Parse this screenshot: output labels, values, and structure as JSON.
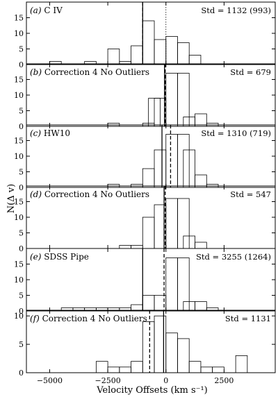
{
  "chart_data": {
    "type": "histogram",
    "xlabel": "Velocity Offsets (km s⁻¹)",
    "ylabel": "N(Δ v)",
    "xlim": [
      -6000,
      4700
    ],
    "bin_width": 500,
    "x_ticks": [
      -5000,
      -2500,
      0,
      2500
    ],
    "x_tick_labels": [
      "−5000",
      "−2500",
      "0",
      "2500"
    ],
    "panels": [
      {
        "letter": "(a)",
        "name": "C IV",
        "std": "Std = 1132 (993)",
        "ylim": [
          0,
          20
        ],
        "y_ticks": [
          0,
          5,
          10,
          15
        ],
        "bins": [
          {
            "x0": -5000,
            "count": 1
          },
          {
            "x0": -3500,
            "count": 1
          },
          {
            "x0": -2500,
            "count": 5
          },
          {
            "x0": -2000,
            "count": 1
          },
          {
            "x0": -1500,
            "count": 6
          },
          {
            "x0": -1000,
            "count": 14
          },
          {
            "x0": -500,
            "count": 8
          },
          {
            "x0": -1000,
            "count": 0
          },
          {
            "x0": 0,
            "count": 9
          },
          {
            "x0": 0,
            "count": 0
          },
          {
            "x0": 500,
            "count": 7
          },
          {
            "x0": 1000,
            "count": 3
          }
        ],
        "solid_line_x": -1000,
        "dashed_line_x": -1000,
        "dotted_line_x": 0
      },
      {
        "letter": "(b)",
        "name": "Correction 4 No Outliers",
        "std": "Std = 679",
        "ylim": [
          0,
          20
        ],
        "y_ticks": [
          0,
          5,
          10,
          15
        ],
        "bins": [
          {
            "x0": -2500,
            "count": 1
          },
          {
            "x0": -1000,
            "count": 1
          },
          {
            "x0": -750,
            "count": 9
          },
          {
            "x0": -500,
            "count": 9
          },
          {
            "x0": 0,
            "count": 17
          },
          {
            "x0": 500,
            "count": 17
          },
          {
            "x0": 750,
            "count": 3
          },
          {
            "x0": 1250,
            "count": 4
          },
          {
            "x0": 1750,
            "count": 1
          }
        ],
        "solid_line_x": -60,
        "dashed_line_x": -30
      },
      {
        "letter": "(c)",
        "name": "HW10",
        "std": "Std = 1310 (719)",
        "ylim": [
          0,
          20
        ],
        "y_ticks": [
          0,
          5,
          10,
          15
        ],
        "bins": [
          {
            "x0": -2500,
            "count": 1
          },
          {
            "x0": -1500,
            "count": 1
          },
          {
            "x0": -1000,
            "count": 6
          },
          {
            "x0": -500,
            "count": 12
          },
          {
            "x0": 0,
            "count": 17
          },
          {
            "x0": 500,
            "count": 17
          },
          {
            "x0": 750,
            "count": 12
          },
          {
            "x0": 1250,
            "count": 4
          },
          {
            "x0": 1750,
            "count": 1
          }
        ],
        "solid_line_x": -170,
        "dashed_line_x": 200
      },
      {
        "letter": "(d)",
        "name": "Correction 4 No Outliers",
        "std": "Std = 547",
        "ylim": [
          0,
          20
        ],
        "y_ticks": [
          0,
          5,
          10,
          15
        ],
        "bins": [
          {
            "x0": -2000,
            "count": 1
          },
          {
            "x0": -1500,
            "count": 1
          },
          {
            "x0": -1000,
            "count": 10
          },
          {
            "x0": -500,
            "count": 14
          },
          {
            "x0": 0,
            "count": 16
          },
          {
            "x0": 500,
            "count": 16
          },
          {
            "x0": 750,
            "count": 4
          },
          {
            "x0": 1250,
            "count": 2
          }
        ],
        "solid_line_x": -80,
        "dashed_line_x": -30
      },
      {
        "letter": "(e)",
        "name": "SDSS Pipe",
        "std": "Std = 3255 (1264)",
        "ylim": [
          0,
          20
        ],
        "y_ticks": [
          0,
          5,
          10,
          15
        ],
        "bins": [
          {
            "x0": -4500,
            "count": 1
          },
          {
            "x0": -4000,
            "count": 1
          },
          {
            "x0": -3500,
            "count": 1
          },
          {
            "x0": -3000,
            "count": 1
          },
          {
            "x0": -2500,
            "count": 1
          },
          {
            "x0": -2000,
            "count": 1
          },
          {
            "x0": -1500,
            "count": 2
          },
          {
            "x0": -1000,
            "count": 5
          },
          {
            "x0": -500,
            "count": 5
          },
          {
            "x0": 0,
            "count": 17
          },
          {
            "x0": 500,
            "count": 17
          },
          {
            "x0": 750,
            "count": 3
          },
          {
            "x0": 1250,
            "count": 3
          },
          {
            "x0": 1750,
            "count": 1
          }
        ],
        "solid_line_x": -1000,
        "dashed_line_x": -80
      },
      {
        "letter": "(f)",
        "name": "Correction 4 No Outliers",
        "std": "Std = 1131",
        "ylim": [
          0,
          11
        ],
        "y_ticks": [
          0,
          5,
          10
        ],
        "bins": [
          {
            "x0": -3000,
            "count": 2
          },
          {
            "x0": -2500,
            "count": 1
          },
          {
            "x0": -2000,
            "count": 1
          },
          {
            "x0": -1500,
            "count": 2
          },
          {
            "x0": -1000,
            "count": 9
          },
          {
            "x0": -500,
            "count": 10
          },
          {
            "x0": 0,
            "count": 7
          },
          {
            "x0": 500,
            "count": 6
          },
          {
            "x0": 1000,
            "count": 2
          },
          {
            "x0": 1500,
            "count": 1
          },
          {
            "x0": 2000,
            "count": 1
          },
          {
            "x0": 2500,
            "count": 0
          },
          {
            "x0": 3000,
            "count": 3
          }
        ],
        "solid_line_x": -100,
        "dashed_line_x": -700
      }
    ]
  }
}
